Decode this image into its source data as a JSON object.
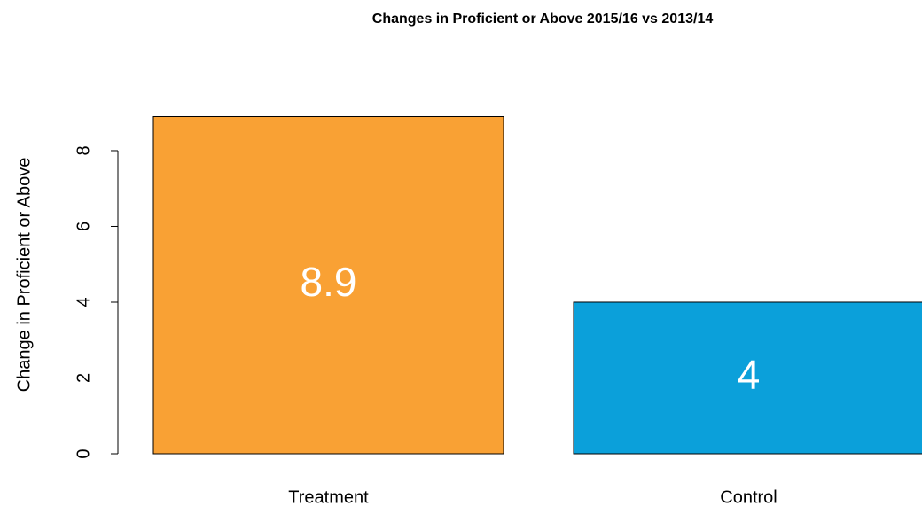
{
  "chart_data": {
    "type": "bar",
    "title": "Changes in Proficient or Above 2015/16 vs 2013/14",
    "ylabel": "Change in Proficient or Above",
    "categories": [
      "Treatment",
      "Control"
    ],
    "values": [
      8.9,
      4
    ],
    "colors": [
      "#F9A134",
      "#0BA0DA"
    ],
    "ylim": [
      0,
      8.9
    ],
    "yticks": [
      0,
      2,
      4,
      6,
      8
    ]
  }
}
